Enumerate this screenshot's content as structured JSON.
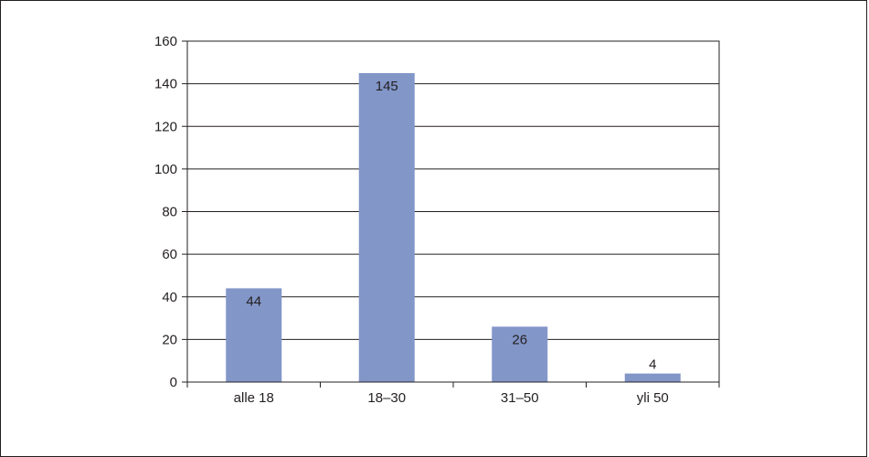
{
  "chart_data": {
    "type": "bar",
    "categories": [
      "alle 18",
      "18–30",
      "31–50",
      "yli 50"
    ],
    "values": [
      44,
      145,
      26,
      4
    ],
    "data_labels": [
      "44",
      "145",
      "26",
      "4"
    ],
    "ylim": [
      0,
      160
    ],
    "y_ticks": [
      0,
      20,
      40,
      60,
      80,
      100,
      120,
      140,
      160
    ],
    "grid": true,
    "bar_color": "#8296c8",
    "axis_color": "#231f20",
    "title": "",
    "xlabel": "",
    "ylabel": ""
  }
}
